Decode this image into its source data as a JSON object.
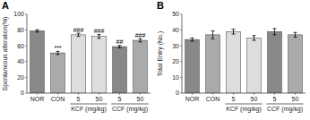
{
  "chart_data": [
    {
      "type": "bar",
      "title": "A",
      "ylabel": "Spontaneous alteration(%)",
      "categories": [
        "NOR",
        "CON",
        "5",
        "50",
        "5",
        "50"
      ],
      "values": [
        79,
        51,
        74,
        72,
        59,
        67
      ],
      "errors": [
        1.5,
        2.0,
        2.0,
        2.5,
        1.5,
        2.0
      ],
      "colors": [
        "#888888",
        "#aaaaaa",
        "#dddddd",
        "#dddddd",
        "#888888",
        "#aaaaaa"
      ],
      "ylim": [
        0,
        100
      ],
      "yticks": [
        0,
        20,
        40,
        60,
        80,
        100
      ],
      "grid": false,
      "groups": [
        {
          "label": "KCF (mg/kg)",
          "start": 2,
          "end": 3
        },
        {
          "label": "CCF (mg/kg)",
          "start": 4,
          "end": 5
        }
      ],
      "annotations": [
        {
          "bar": 1,
          "text": "***"
        },
        {
          "bar": 2,
          "text": "###"
        },
        {
          "bar": 3,
          "text": "###"
        },
        {
          "bar": 4,
          "text": "##"
        },
        {
          "bar": 5,
          "text": "###"
        }
      ]
    },
    {
      "type": "bar",
      "title": "B",
      "ylabel": "Total Entry (No.)",
      "categories": [
        "NOR",
        "CON",
        "5",
        "50",
        "5",
        "50"
      ],
      "values": [
        34,
        37,
        39,
        35,
        39,
        37
      ],
      "errors": [
        1.0,
        2.5,
        1.5,
        1.5,
        2.0,
        1.5
      ],
      "colors": [
        "#888888",
        "#aaaaaa",
        "#dddddd",
        "#dddddd",
        "#888888",
        "#aaaaaa"
      ],
      "ylim": [
        0,
        50
      ],
      "yticks": [
        0,
        10,
        20,
        30,
        40,
        50
      ],
      "grid": false,
      "groups": [
        {
          "label": "KCF (mg/kg)",
          "start": 2,
          "end": 3
        },
        {
          "label": "CCF (mg/kg)",
          "start": 4,
          "end": 5
        }
      ],
      "annotations": []
    }
  ]
}
